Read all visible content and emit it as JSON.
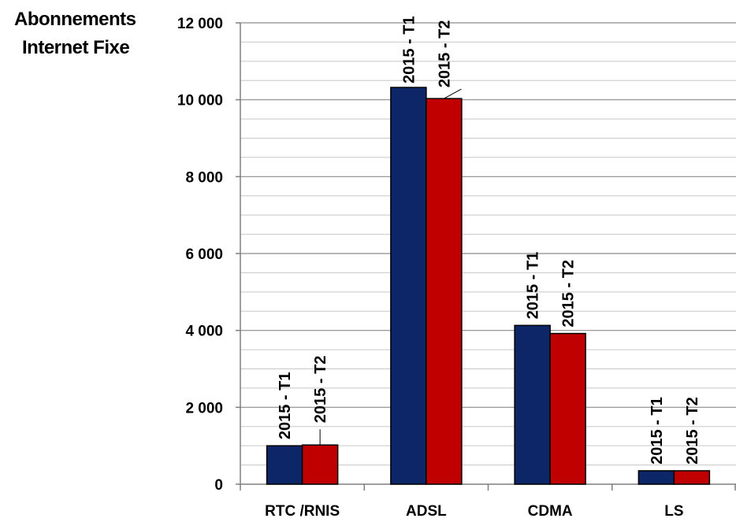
{
  "chart_data": {
    "type": "bar",
    "title_lines": [
      "Abonnements",
      "Internet Fixe"
    ],
    "categories": [
      "RTC /RNIS",
      "ADSL",
      "CDMA",
      "LS"
    ],
    "series": [
      {
        "name": "2015 - T1",
        "color": "#0d2668",
        "values": [
          1000,
          10320,
          4130,
          350
        ]
      },
      {
        "name": "2015 - T2",
        "color": "#c00000",
        "values": [
          1020,
          10030,
          3920,
          350
        ]
      }
    ],
    "data_labels": [
      [
        "2015 - T1",
        "2015 - T2"
      ],
      [
        "2015 - T1",
        "2015 - T2"
      ],
      [
        "2015 - T1",
        "2015 - T2"
      ],
      [
        "2015 - T1",
        "2015 - T2"
      ]
    ],
    "ylim": [
      0,
      12000
    ],
    "yticks": [
      0,
      2000,
      4000,
      6000,
      8000,
      10000,
      12000
    ],
    "ytick_labels": [
      "0",
      "2 000",
      "4 000",
      "6 000",
      "8 000",
      "10 000",
      "12 000"
    ],
    "grid": true,
    "legend": "none"
  }
}
